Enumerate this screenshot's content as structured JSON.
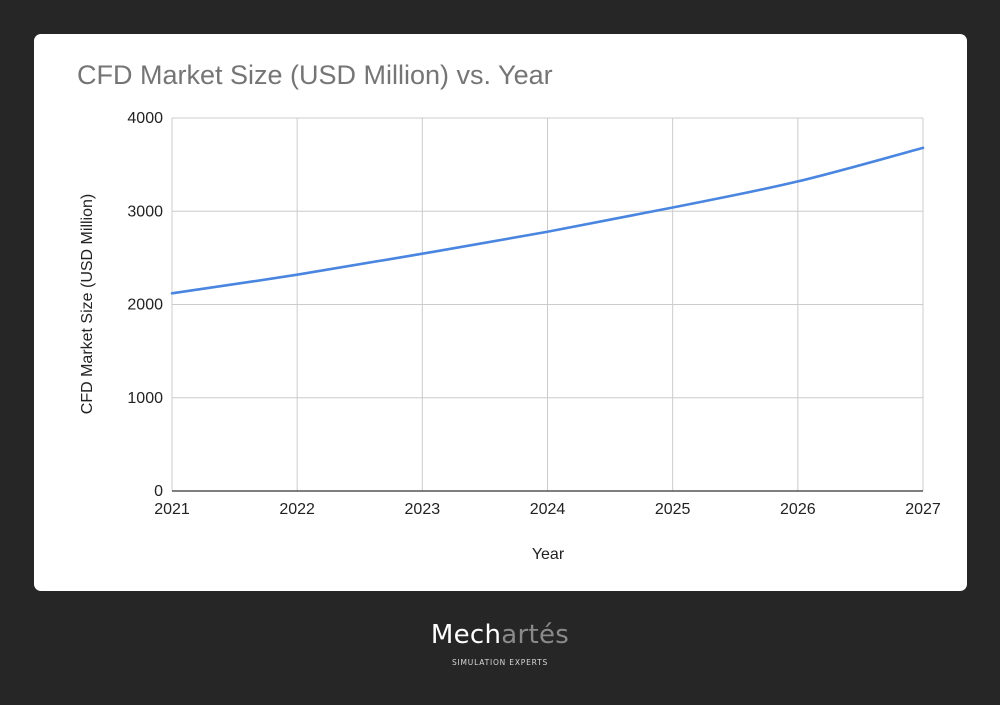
{
  "chart_data": {
    "type": "line",
    "title": "CFD Market Size (USD Million) vs. Year",
    "xlabel": "Year",
    "ylabel": "CFD Market Size (USD Million)",
    "x": [
      2021,
      2022,
      2023,
      2024,
      2025,
      2026,
      2027
    ],
    "xlim": [
      2021,
      2027
    ],
    "ylim": [
      0,
      4000
    ],
    "yticks": [
      0,
      1000,
      2000,
      3000,
      4000
    ],
    "grid": true,
    "series": [
      {
        "values": [
          2120,
          2320,
          2545,
          2780,
          3040,
          3320,
          3680
        ],
        "color": "#4a86e0"
      }
    ]
  },
  "brand": {
    "name_part1": "Mech",
    "name_part2": "artés",
    "tagline": "SIMULATION EXPERTS"
  }
}
